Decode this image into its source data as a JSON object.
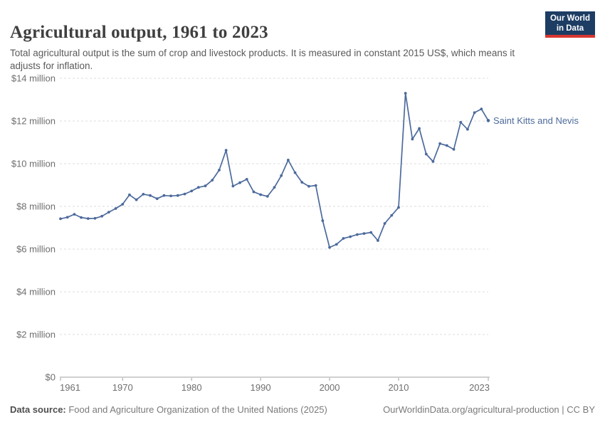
{
  "header": {
    "title": "Agricultural output, 1961 to 2023",
    "subtitle": "Total agricultural output is the sum of crop and livestock products. It is measured in constant 2015 US$, which means it adjusts for inflation.",
    "logo_line1": "Our World",
    "logo_line2": "in Data",
    "logo_bg_color": "#1d3d63",
    "logo_bar_color": "#d83731"
  },
  "chart_data": {
    "type": "line",
    "title": "Agricultural output, 1961 to 2023",
    "unit": "constant 2015 US$ (millions)",
    "grid": "horizontal dashed",
    "legend_position": "end-of-line label",
    "xlim": [
      1961,
      2023
    ],
    "ylim": [
      0,
      14
    ],
    "x_ticks": [
      1961,
      1970,
      1980,
      1990,
      2000,
      2010,
      2023
    ],
    "y_ticks": [
      {
        "value": 0,
        "label": "$0"
      },
      {
        "value": 2,
        "label": "$2 million"
      },
      {
        "value": 4,
        "label": "$4 million"
      },
      {
        "value": 6,
        "label": "$6 million"
      },
      {
        "value": 8,
        "label": "$8 million"
      },
      {
        "value": 10,
        "label": "$10 million"
      },
      {
        "value": 12,
        "label": "$12 million"
      },
      {
        "value": 14,
        "label": "$14 million"
      }
    ],
    "x": [
      1961,
      1962,
      1963,
      1964,
      1965,
      1966,
      1967,
      1968,
      1969,
      1970,
      1971,
      1972,
      1973,
      1974,
      1975,
      1976,
      1977,
      1978,
      1979,
      1980,
      1981,
      1982,
      1983,
      1984,
      1985,
      1986,
      1987,
      1988,
      1989,
      1990,
      1991,
      1992,
      1993,
      1994,
      1995,
      1996,
      1997,
      1998,
      1999,
      2000,
      2001,
      2002,
      2003,
      2004,
      2005,
      2006,
      2007,
      2008,
      2009,
      2010,
      2011,
      2012,
      2013,
      2014,
      2015,
      2016,
      2017,
      2018,
      2019,
      2020,
      2021,
      2022,
      2023
    ],
    "series": [
      {
        "name": "Saint Kitts and Nevis",
        "color": "#4C6A9C",
        "values": [
          7.42,
          7.49,
          7.63,
          7.48,
          7.43,
          7.44,
          7.54,
          7.73,
          7.9,
          8.1,
          8.54,
          8.31,
          8.57,
          8.51,
          8.36,
          8.51,
          8.49,
          8.51,
          8.58,
          8.72,
          8.89,
          8.96,
          9.23,
          9.7,
          10.63,
          8.95,
          9.11,
          9.27,
          8.68,
          8.55,
          8.47,
          8.89,
          9.44,
          10.17,
          9.58,
          9.13,
          8.94,
          8.98,
          7.33,
          6.08,
          6.22,
          6.5,
          6.58,
          6.68,
          6.73,
          6.78,
          6.4,
          7.2,
          7.58,
          7.95,
          13.3,
          11.15,
          11.65,
          10.45,
          10.1,
          10.94,
          10.85,
          10.67,
          11.94,
          11.61,
          12.39,
          12.56,
          12.02
        ]
      }
    ]
  },
  "footer": {
    "source_label": "Data source:",
    "source_text": " Food and Agriculture Organization of the United Nations (2025)",
    "attribution": "OurWorldinData.org/agricultural-production | CC BY"
  }
}
